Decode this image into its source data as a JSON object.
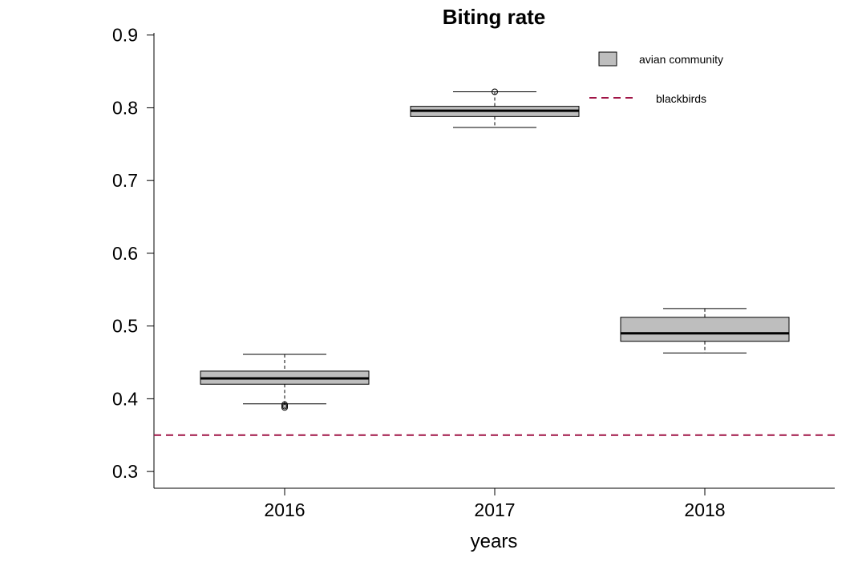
{
  "chart_data": {
    "type": "box",
    "title": "Biting rate",
    "xlabel": "years",
    "ylabel": "",
    "ylim": [
      0.277,
      0.903
    ],
    "yticks": [
      0.3,
      0.4,
      0.5,
      0.6,
      0.7,
      0.8,
      0.9
    ],
    "ytick_labels": [
      "0.3",
      "0.4",
      "0.5",
      "0.6",
      "0.7",
      "0.8",
      "0.9"
    ],
    "categories": [
      "2016",
      "2017",
      "2018"
    ],
    "boxes": [
      {
        "category": "2016",
        "whisker_low": 0.393,
        "q1": 0.42,
        "median": 0.428,
        "q3": 0.438,
        "whisker_high": 0.461,
        "outliers": [
          0.388,
          0.39,
          0.392
        ]
      },
      {
        "category": "2017",
        "whisker_low": 0.773,
        "q1": 0.788,
        "median": 0.796,
        "q3": 0.802,
        "whisker_high": 0.822,
        "outliers": [
          0.822
        ]
      },
      {
        "category": "2018",
        "whisker_low": 0.463,
        "q1": 0.479,
        "median": 0.49,
        "q3": 0.512,
        "whisker_high": 0.524,
        "outliers": []
      }
    ],
    "reference_lines": [
      {
        "name": "blackbirds",
        "y": 0.35,
        "style": "dashed",
        "color": "#a01446"
      }
    ],
    "legend": {
      "placement": "top-right",
      "entries": [
        {
          "label": "avian community",
          "kind": "box",
          "color": "#bebebe"
        },
        {
          "label": "blackbirds",
          "kind": "dashed-line",
          "color": "#a01446"
        }
      ]
    },
    "grid": false,
    "colors": {
      "box_fill": "#bebebe",
      "box_stroke": "#000000",
      "reference": "#a01446"
    }
  }
}
